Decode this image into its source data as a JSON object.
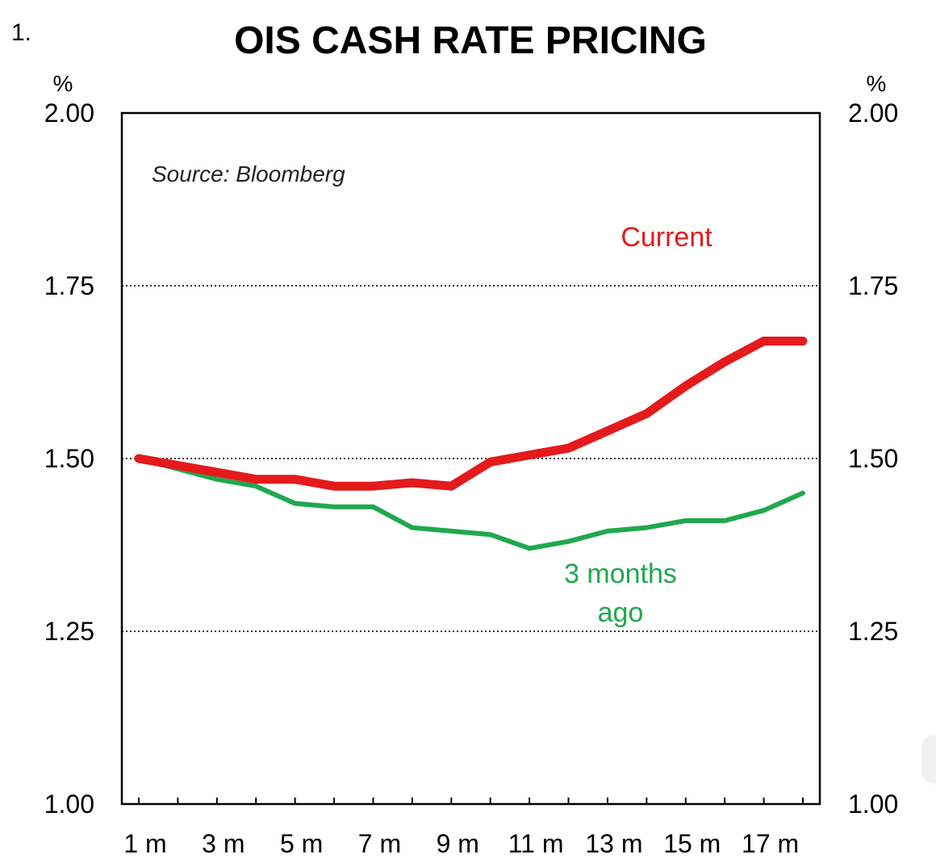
{
  "chart_data": {
    "type": "line",
    "figure_number": "1.",
    "title": "OIS CASH RATE PRICING",
    "source_note": "Source: Bloomberg",
    "y_unit_left": "%",
    "y_unit_right": "%",
    "ylim": [
      1.0,
      2.0
    ],
    "yticks": [
      1.0,
      1.25,
      1.5,
      1.75,
      2.0
    ],
    "ytick_labels": [
      "1.00",
      "1.25",
      "1.50",
      "1.75",
      "2.00"
    ],
    "y_gridlines": [
      1.25,
      1.5,
      1.75
    ],
    "grid_style": "dotted horizontal",
    "x_months": [
      1,
      2,
      3,
      4,
      5,
      6,
      7,
      8,
      9,
      10,
      11,
      12,
      13,
      14,
      15,
      16,
      17,
      18
    ],
    "x_tick_labels": [
      "1 m",
      "3 m",
      "5 m",
      "7 m",
      "9 m",
      "11 m",
      "13 m",
      "15 m",
      "17 m"
    ],
    "x_tick_label_months": [
      1,
      3,
      5,
      7,
      9,
      11,
      13,
      15,
      17
    ],
    "series": [
      {
        "name": "Current",
        "label_lines": [
          "Current"
        ],
        "color": "#e41a1c",
        "values": [
          1.5,
          1.49,
          1.48,
          1.47,
          1.47,
          1.46,
          1.46,
          1.465,
          1.46,
          1.495,
          1.505,
          1.515,
          1.54,
          1.565,
          1.605,
          1.64,
          1.67,
          1.67
        ]
      },
      {
        "name": "3 months ago",
        "label_lines": [
          "3 months",
          "ago"
        ],
        "color": "#1fa84f",
        "values": [
          1.5,
          1.485,
          1.47,
          1.46,
          1.435,
          1.43,
          1.43,
          1.4,
          1.395,
          1.39,
          1.37,
          1.38,
          1.395,
          1.4,
          1.41,
          1.41,
          1.425,
          1.45
        ]
      }
    ]
  }
}
